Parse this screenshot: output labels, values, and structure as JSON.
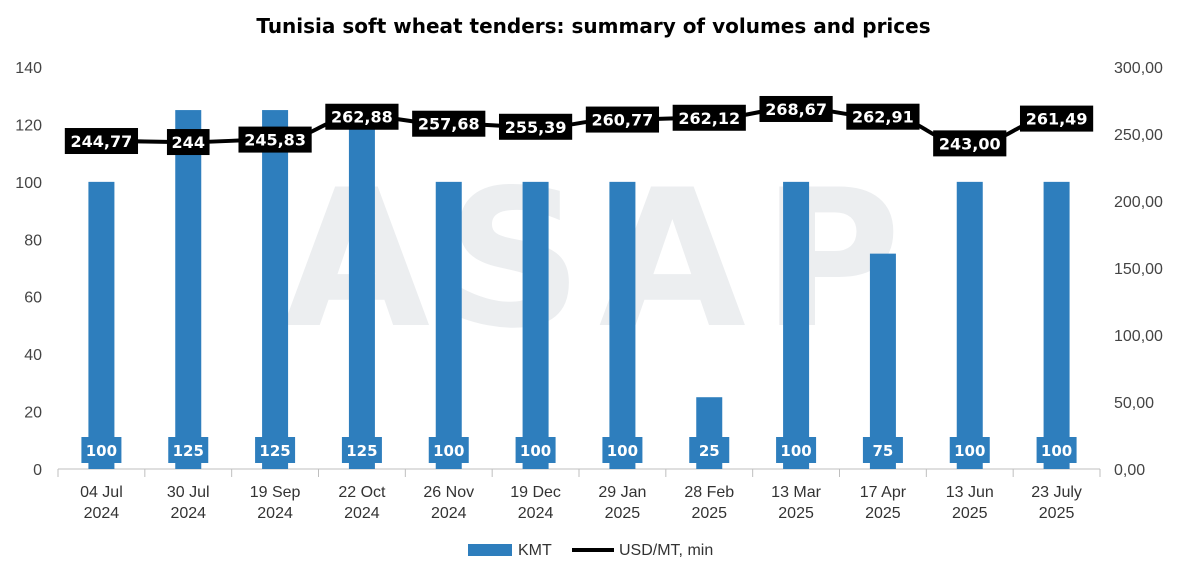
{
  "chart_data": {
    "type": "bar",
    "title": "Tunisia soft wheat tenders: summary of volumes and prices",
    "watermark": "ASAP",
    "categories": [
      [
        "04 Jul",
        "2024"
      ],
      [
        "30 Jul",
        "2024"
      ],
      [
        "19 Sep",
        "2024"
      ],
      [
        "22 Oct",
        "2024"
      ],
      [
        "26 Nov",
        "2024"
      ],
      [
        "19 Dec",
        "2024"
      ],
      [
        "29 Jan",
        "2025"
      ],
      [
        "28 Feb",
        "2025"
      ],
      [
        "13 Mar",
        "2025"
      ],
      [
        "17 Apr",
        "2025"
      ],
      [
        "13 Jun",
        "2025"
      ],
      [
        "23 July",
        "2025"
      ]
    ],
    "series": [
      {
        "name": "KMT",
        "type": "bar",
        "axis": "left",
        "color": "#2e7ebd",
        "values": [
          100,
          125,
          125,
          125,
          100,
          100,
          100,
          25,
          100,
          75,
          100,
          100
        ],
        "labels": [
          "100",
          "125",
          "125",
          "125",
          "100",
          "100",
          "100",
          "25",
          "100",
          "75",
          "100",
          "100"
        ]
      },
      {
        "name": "USD/MT, min",
        "type": "line",
        "axis": "right",
        "color": "#000000",
        "values": [
          244.77,
          244,
          245.83,
          262.88,
          257.68,
          255.39,
          260.77,
          262.12,
          268.67,
          262.91,
          243.0,
          261.49
        ],
        "labels": [
          "244,77",
          "244",
          "245,83",
          "262,88",
          "257,68",
          "255,39",
          "260,77",
          "262,12",
          "268,67",
          "262,91",
          "243,00",
          "261,49"
        ]
      }
    ],
    "y_left": {
      "min": 0,
      "max": 140,
      "ticks": [
        "0",
        "20",
        "40",
        "60",
        "80",
        "100",
        "120",
        "140"
      ]
    },
    "y_right": {
      "min": 0,
      "max": 300,
      "ticks": [
        "0,00",
        "50,00",
        "100,00",
        "150,00",
        "200,00",
        "250,00",
        "300,00"
      ]
    },
    "grid": false,
    "legend_position": "bottom"
  }
}
